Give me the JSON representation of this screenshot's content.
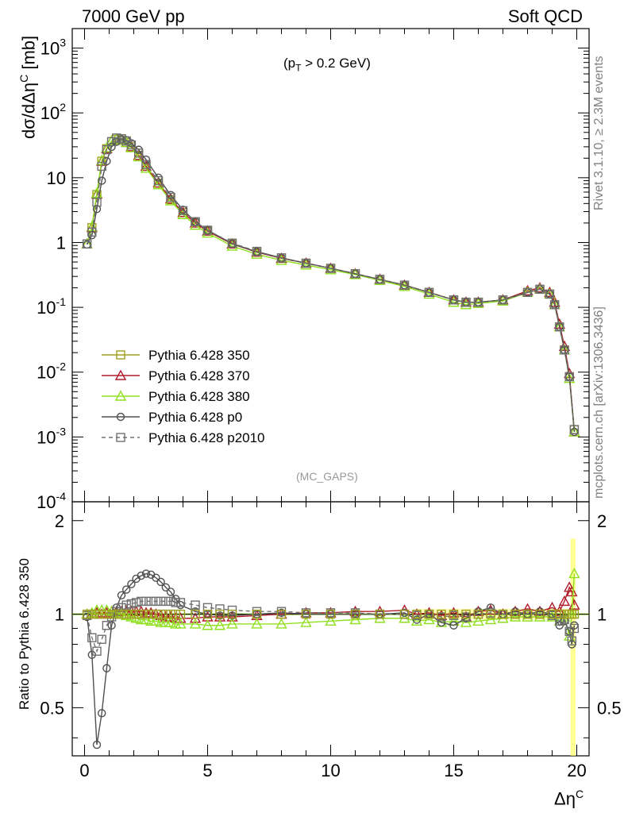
{
  "header": {
    "left_title": "7000 GeV pp",
    "right_title": "Soft QCD"
  },
  "side_labels": {
    "rivet": "Rivet 3.1.10, ≥ 2.3M events",
    "mcplots": "mcplots.cern.ch [arXiv:1306.3436]"
  },
  "chart_data": [
    {
      "type": "line",
      "annotation": "(p_T > 0.2 GeV)",
      "watermark": "(MC_GAPS)",
      "ylabel": "dσ/dΔη^C [mb]",
      "xlabel": "Δη^C",
      "xlim": [
        -0.5,
        20.5
      ],
      "ylim": [
        0.0001,
        2000
      ],
      "yscale": "log",
      "y_tick_labels": [
        "10^-4",
        "10^-3",
        "10^-2",
        "10^-1",
        "1",
        "10",
        "10^2",
        "10^3"
      ],
      "legend_position": "lower-left",
      "colors": {
        "350": "#a0a020",
        "370": "#b01c2c",
        "380": "#90e020",
        "p0": "#505050",
        "p2010": "#707070"
      },
      "x": [
        0.1,
        0.3,
        0.5,
        0.7,
        0.9,
        1.1,
        1.3,
        1.5,
        1.7,
        1.9,
        2.2,
        2.5,
        3.0,
        3.5,
        4.0,
        4.5,
        5.0,
        6.0,
        7.0,
        8.0,
        9.0,
        10.0,
        11.0,
        12.0,
        13.0,
        14.0,
        15.0,
        15.5,
        16.0,
        17.0,
        18.0,
        18.5,
        18.9,
        19.1,
        19.3,
        19.5,
        19.7,
        19.9
      ],
      "series": [
        {
          "name": "Pythia 6.428 350",
          "marker": "open-square",
          "line": "solid",
          "values": [
            0.95,
            1.7,
            5.5,
            18,
            28,
            36,
            39,
            38,
            35,
            30,
            22,
            15,
            8.2,
            4.6,
            2.9,
            2.0,
            1.5,
            0.95,
            0.72,
            0.58,
            0.48,
            0.4,
            0.33,
            0.27,
            0.22,
            0.17,
            0.13,
            0.12,
            0.12,
            0.13,
            0.17,
            0.19,
            0.16,
            0.11,
            0.05,
            0.022,
            0.0085,
            0.0013
          ]
        },
        {
          "name": "Pythia 6.428 370",
          "marker": "open-triangle",
          "line": "solid",
          "values": [
            0.95,
            1.7,
            5.6,
            18,
            28,
            37,
            40,
            38,
            35,
            30,
            22,
            15,
            8.3,
            4.7,
            2.9,
            2.0,
            1.5,
            0.95,
            0.71,
            0.57,
            0.48,
            0.4,
            0.33,
            0.27,
            0.22,
            0.17,
            0.13,
            0.12,
            0.12,
            0.13,
            0.18,
            0.2,
            0.17,
            0.12,
            0.055,
            0.025,
            0.0095,
            0.0012
          ]
        },
        {
          "name": "Pythia 6.428 380",
          "marker": "open-triangle",
          "line": "solid",
          "values": [
            0.95,
            1.75,
            5.8,
            18.5,
            29,
            37,
            40,
            38,
            35,
            29,
            21,
            14,
            7.8,
            4.4,
            2.7,
            1.85,
            1.4,
            0.88,
            0.66,
            0.53,
            0.45,
            0.38,
            0.32,
            0.26,
            0.21,
            0.16,
            0.12,
            0.11,
            0.115,
            0.125,
            0.17,
            0.19,
            0.16,
            0.11,
            0.05,
            0.022,
            0.008,
            0.0012
          ]
        },
        {
          "name": "Pythia 6.428 p0",
          "marker": "open-circle",
          "line": "solid",
          "values": [
            0.93,
            1.3,
            3.3,
            9,
            18,
            30,
            36,
            39,
            38,
            34,
            27,
            19,
            10,
            5.4,
            3.2,
            2.1,
            1.55,
            0.96,
            0.72,
            0.58,
            0.48,
            0.4,
            0.33,
            0.27,
            0.22,
            0.17,
            0.13,
            0.12,
            0.12,
            0.13,
            0.17,
            0.19,
            0.16,
            0.11,
            0.05,
            0.022,
            0.0085,
            0.0012
          ]
        },
        {
          "name": "Pythia 6.428 p2010",
          "marker": "open-square",
          "line": "dashed",
          "values": [
            0.95,
            1.45,
            4.2,
            15,
            27,
            36,
            41,
            40,
            37,
            32,
            24,
            16,
            9,
            5.0,
            3.1,
            2.1,
            1.55,
            0.98,
            0.73,
            0.58,
            0.48,
            0.4,
            0.33,
            0.27,
            0.22,
            0.17,
            0.13,
            0.12,
            0.12,
            0.13,
            0.17,
            0.19,
            0.16,
            0.11,
            0.05,
            0.022,
            0.0085,
            0.0013
          ]
        }
      ]
    },
    {
      "type": "line",
      "ylabel": "Ratio to Pythia 6.428 350",
      "xlabel": "Δη^C",
      "xlim": [
        -0.5,
        20.5
      ],
      "ylim": [
        0.35,
        2.3
      ],
      "yscale": "log",
      "y_ticks": [
        0.5,
        1,
        2
      ],
      "x_ticks": [
        0,
        5,
        10,
        15,
        20
      ],
      "x": [
        0.1,
        0.3,
        0.5,
        0.7,
        0.9,
        1.1,
        1.3,
        1.5,
        1.7,
        1.9,
        2.1,
        2.3,
        2.5,
        2.7,
        2.9,
        3.1,
        3.3,
        3.5,
        3.7,
        3.9,
        4.5,
        5.0,
        5.5,
        6.0,
        7.0,
        8.0,
        9.0,
        10.0,
        11.0,
        12.0,
        13.0,
        13.5,
        14.0,
        14.5,
        15.0,
        15.5,
        16.0,
        16.5,
        17.0,
        17.5,
        18.0,
        18.5,
        19.0,
        19.3,
        19.5,
        19.7,
        19.8,
        19.9
      ],
      "series": [
        {
          "name": "Pythia 6.428 370",
          "values": [
            1.0,
            1.0,
            1.01,
            1.0,
            1.01,
            1.02,
            1.02,
            1.02,
            1.02,
            1.02,
            1.02,
            1.02,
            1.01,
            1.01,
            1.0,
            0.99,
            0.98,
            0.98,
            0.97,
            0.97,
            0.97,
            0.98,
            0.98,
            0.98,
            0.99,
            1.0,
            1.01,
            1.01,
            1.02,
            1.02,
            1.03,
            1.0,
            1.01,
            0.99,
            1.01,
            0.98,
            1.02,
            1.03,
            1.0,
            1.02,
            1.04,
            1.02,
            1.05,
            1.02,
            1.1,
            1.22,
            1.18,
            1.07
          ]
        },
        {
          "name": "Pythia 6.428 380",
          "values": [
            1.0,
            1.01,
            1.03,
            1.03,
            1.03,
            1.02,
            1.01,
            1.0,
            0.99,
            0.98,
            0.97,
            0.96,
            0.96,
            0.95,
            0.95,
            0.94,
            0.94,
            0.94,
            0.93,
            0.93,
            0.93,
            0.92,
            0.92,
            0.93,
            0.93,
            0.93,
            0.94,
            0.95,
            0.96,
            0.97,
            0.97,
            0.95,
            0.96,
            0.94,
            0.95,
            0.94,
            0.95,
            0.96,
            0.97,
            0.98,
            0.98,
            0.98,
            0.98,
            0.95,
            0.98,
            0.85,
            1.0,
            1.35
          ]
        },
        {
          "name": "Pythia 6.428 p0",
          "values": [
            0.98,
            0.74,
            0.38,
            0.48,
            0.67,
            0.92,
            1.05,
            1.15,
            1.2,
            1.25,
            1.3,
            1.33,
            1.35,
            1.34,
            1.31,
            1.27,
            1.22,
            1.18,
            1.12,
            1.07,
            1.02,
            1.0,
            0.99,
            0.99,
            1.0,
            1.01,
            1.0,
            1.0,
            1.0,
            1.0,
            1.01,
            0.96,
            1.0,
            0.94,
            0.92,
            0.97,
            1.02,
            1.05,
            1.0,
            1.02,
            1.0,
            1.02,
            1.0,
            0.92,
            0.95,
            0.88,
            0.8,
            0.92
          ]
        },
        {
          "name": "Pythia 6.428 p2010",
          "values": [
            0.99,
            0.84,
            0.76,
            0.83,
            0.92,
            0.98,
            1.02,
            1.05,
            1.07,
            1.08,
            1.09,
            1.1,
            1.1,
            1.1,
            1.1,
            1.1,
            1.1,
            1.1,
            1.09,
            1.09,
            1.07,
            1.05,
            1.04,
            1.03,
            1.02,
            1.02,
            1.01,
            1.01,
            1.01,
            1.0,
            1.0,
            0.99,
            1.0,
            0.98,
            0.99,
            0.98,
            1.0,
            1.01,
            1.0,
            1.0,
            1.0,
            1.0,
            0.99,
            0.95,
            0.96,
            0.88,
            0.82,
            0.9
          ]
        }
      ]
    }
  ]
}
